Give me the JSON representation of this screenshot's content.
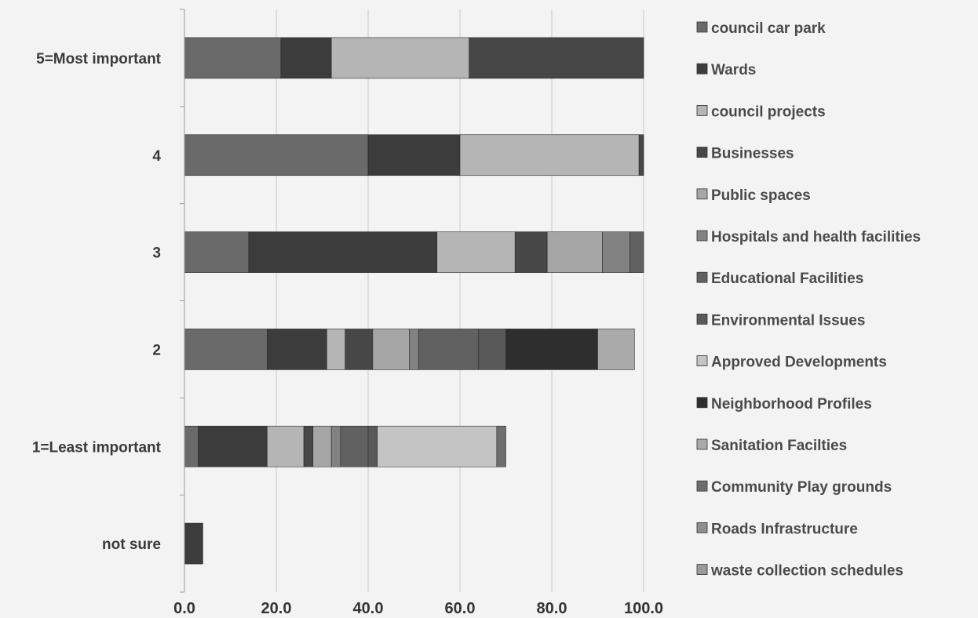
{
  "chart_data": {
    "type": "bar",
    "orientation": "horizontal",
    "stacked": true,
    "categories": [
      "5=Most important",
      "4",
      "3",
      "2",
      "1=Least important",
      "not sure"
    ],
    "xlim": [
      0,
      100
    ],
    "xticks": [
      "0.0",
      "20.0",
      "40.0",
      "60.0",
      "80.0",
      "100.0"
    ],
    "grid": true,
    "legend_position": "right",
    "series": [
      {
        "name": "council car park",
        "color": "#6a6a6a",
        "values": [
          21,
          40,
          14,
          18,
          3,
          0
        ]
      },
      {
        "name": "Wards",
        "color": "#3c3c3c",
        "values": [
          11,
          20,
          41,
          13,
          15,
          4
        ]
      },
      {
        "name": "council projects",
        "color": "#b5b5b5",
        "values": [
          30,
          39,
          17,
          4,
          8,
          0
        ]
      },
      {
        "name": "Businesses",
        "color": "#474747",
        "values": [
          38,
          1,
          7,
          6,
          2,
          0
        ]
      },
      {
        "name": "Public spaces",
        "color": "#a6a6a6",
        "values": [
          0,
          0,
          12,
          8,
          4,
          0
        ]
      },
      {
        "name": "Hospitals and health facilities",
        "color": "#828282",
        "values": [
          0,
          0,
          6,
          2,
          2,
          0
        ]
      },
      {
        "name": "Educational Facilities",
        "color": "#616161",
        "values": [
          0,
          0,
          3,
          13,
          6,
          0
        ]
      },
      {
        "name": "Environmental Issues",
        "color": "#595959",
        "values": [
          0,
          0,
          0,
          6,
          2,
          0
        ]
      },
      {
        "name": "Approved Developments",
        "color": "#c4c4c4",
        "values": [
          0,
          0,
          0,
          0,
          26,
          0
        ]
      },
      {
        "name": "Neighborhood Profiles",
        "color": "#2e2e2e",
        "values": [
          0,
          0,
          0,
          20,
          0,
          0
        ]
      },
      {
        "name": "Sanitation Facilties",
        "color": "#aaaaaa",
        "values": [
          0,
          0,
          0,
          8,
          0,
          0
        ]
      },
      {
        "name": "Community Play grounds",
        "color": "#6e6e6e",
        "values": [
          0,
          0,
          0,
          0,
          2,
          0
        ]
      },
      {
        "name": "Roads Infrastructure",
        "color": "#8e8e8e",
        "values": [
          0,
          0,
          0,
          0,
          0,
          0
        ]
      },
      {
        "name": "waste collection schedules",
        "color": "#9a9a9a",
        "values": [
          0,
          0,
          0,
          0,
          0,
          0
        ]
      }
    ]
  }
}
